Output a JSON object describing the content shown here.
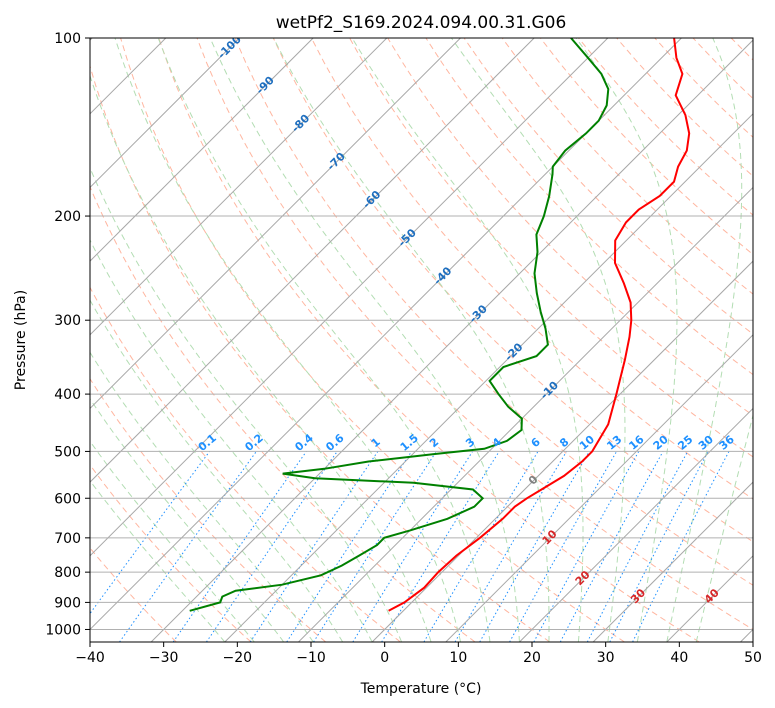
{
  "chart_data": {
    "type": "line",
    "subtype": "skew-T log-P diagram",
    "title": "wetPf2_S169.2024.094.00.31.G06",
    "xlabel": "Temperature (°C)",
    "ylabel": "Pressure (hPa)",
    "xlim": [
      -40,
      50
    ],
    "ylim": [
      1050,
      100
    ],
    "y_scale": "log",
    "grid": true,
    "x_ticks": [
      "−40",
      "−30",
      "−20",
      "−10",
      "0",
      "10",
      "20",
      "30",
      "40",
      "50"
    ],
    "y_ticks": [
      "100",
      "200",
      "300",
      "400",
      "500",
      "600",
      "700",
      "800",
      "900",
      "1000"
    ],
    "series": [
      {
        "role": "temperature",
        "color": "#ff0000",
        "points": [
          {
            "p": 930,
            "t": -2
          },
          {
            "p": 900,
            "t": -1
          },
          {
            "p": 850,
            "t": -0.3
          },
          {
            "p": 800,
            "t": -0.5
          },
          {
            "p": 750,
            "t": -0.3
          },
          {
            "p": 700,
            "t": 0.5
          },
          {
            "p": 650,
            "t": 1
          },
          {
            "p": 620,
            "t": 1
          },
          {
            "p": 600,
            "t": 1.5
          },
          {
            "p": 580,
            "t": 2.3
          },
          {
            "p": 550,
            "t": 3.5
          },
          {
            "p": 520,
            "t": 4
          },
          {
            "p": 500,
            "t": 4
          },
          {
            "p": 450,
            "t": 2.5
          },
          {
            "p": 400,
            "t": -0.5
          },
          {
            "p": 350,
            "t": -4
          },
          {
            "p": 320,
            "t": -6.5
          },
          {
            "p": 300,
            "t": -8.5
          },
          {
            "p": 280,
            "t": -11
          },
          {
            "p": 260,
            "t": -14.5
          },
          {
            "p": 240,
            "t": -18.5
          },
          {
            "p": 220,
            "t": -21.5
          },
          {
            "p": 205,
            "t": -22.5
          },
          {
            "p": 195,
            "t": -22.5
          },
          {
            "p": 185,
            "t": -21.5
          },
          {
            "p": 175,
            "t": -21.5
          },
          {
            "p": 165,
            "t": -23
          },
          {
            "p": 155,
            "t": -24
          },
          {
            "p": 145,
            "t": -26
          },
          {
            "p": 135,
            "t": -29
          },
          {
            "p": 125,
            "t": -33
          },
          {
            "p": 115,
            "t": -35
          },
          {
            "p": 108,
            "t": -38
          },
          {
            "p": 100,
            "t": -41
          }
        ]
      },
      {
        "role": "dewpoint",
        "color": "#008000",
        "points": [
          {
            "p": 930,
            "t": -29
          },
          {
            "p": 900,
            "t": -26
          },
          {
            "p": 880,
            "t": -26.5
          },
          {
            "p": 860,
            "t": -25.5
          },
          {
            "p": 840,
            "t": -20
          },
          {
            "p": 810,
            "t": -16
          },
          {
            "p": 780,
            "t": -14.5
          },
          {
            "p": 750,
            "t": -13.5
          },
          {
            "p": 720,
            "t": -12.5
          },
          {
            "p": 700,
            "t": -12.5
          },
          {
            "p": 680,
            "t": -10
          },
          {
            "p": 650,
            "t": -6.5
          },
          {
            "p": 620,
            "t": -4.5
          },
          {
            "p": 600,
            "t": -4.5
          },
          {
            "p": 580,
            "t": -7
          },
          {
            "p": 565,
            "t": -16
          },
          {
            "p": 555,
            "t": -30
          },
          {
            "p": 545,
            "t": -35
          },
          {
            "p": 535,
            "t": -30
          },
          {
            "p": 520,
            "t": -25
          },
          {
            "p": 505,
            "t": -17
          },
          {
            "p": 495,
            "t": -11
          },
          {
            "p": 480,
            "t": -9
          },
          {
            "p": 460,
            "t": -8.5
          },
          {
            "p": 440,
            "t": -10
          },
          {
            "p": 420,
            "t": -13.5
          },
          {
            "p": 400,
            "t": -16.5
          },
          {
            "p": 380,
            "t": -19.5
          },
          {
            "p": 360,
            "t": -19.5
          },
          {
            "p": 345,
            "t": -16.5
          },
          {
            "p": 330,
            "t": -16.5
          },
          {
            "p": 310,
            "t": -19
          },
          {
            "p": 290,
            "t": -22
          },
          {
            "p": 270,
            "t": -25
          },
          {
            "p": 250,
            "t": -28
          },
          {
            "p": 230,
            "t": -30.5
          },
          {
            "p": 215,
            "t": -33
          },
          {
            "p": 200,
            "t": -34.5
          },
          {
            "p": 185,
            "t": -36.5
          },
          {
            "p": 170,
            "t": -39
          },
          {
            "p": 165,
            "t": -40
          },
          {
            "p": 155,
            "t": -40.5
          },
          {
            "p": 145,
            "t": -40
          },
          {
            "p": 138,
            "t": -40
          },
          {
            "p": 130,
            "t": -41
          },
          {
            "p": 122,
            "t": -43
          },
          {
            "p": 115,
            "t": -46
          },
          {
            "p": 108,
            "t": -50
          },
          {
            "p": 100,
            "t": -55
          }
        ]
      }
    ],
    "isotherm_labels": [
      "-100",
      "-90",
      "-80",
      "-70",
      "-60",
      "-50",
      "-40",
      "-30",
      "-20",
      "-10",
      "0",
      "10",
      "20",
      "30",
      "40"
    ],
    "mixing_ratio_labels": [
      "0.1",
      "0.2",
      "0.4",
      "0.6",
      "1",
      "1.5",
      "2",
      "3",
      "4",
      "6",
      "8",
      "10",
      "13",
      "16",
      "20",
      "25",
      "30",
      "36"
    ],
    "colors": {
      "temperature": "#ff0000",
      "dewpoint": "#008000",
      "grid": "#b0b0b0",
      "isotherm": "#a8a8a8",
      "dry_adiabat": "#ffb6a0",
      "moist_adiabat": "#b3ddb3",
      "mixing_ratio": "#1e90ff",
      "isotherm_label_cold": "#1f6fbf",
      "isotherm_label_warm": "#d62728",
      "mixing_label": "#1e90ff"
    }
  }
}
